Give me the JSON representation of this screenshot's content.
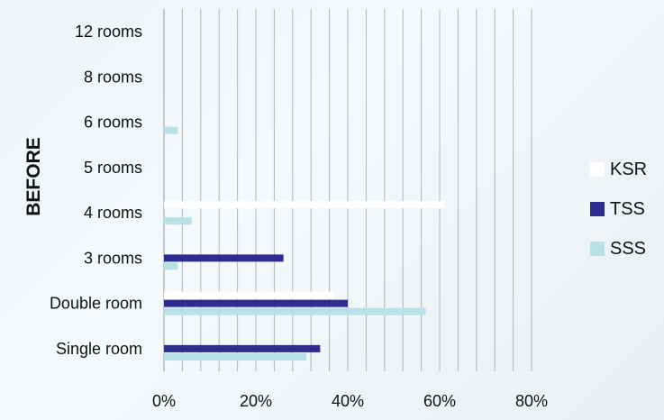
{
  "chart_data": {
    "type": "bar",
    "orientation": "horizontal",
    "ylabel": "BEFORE",
    "categories": [
      "12 rooms",
      "8 rooms",
      "6 rooms",
      "5 rooms",
      "4 rooms",
      "3 rooms",
      "Double room",
      "Single room"
    ],
    "xticks": [
      "0%",
      "20%",
      "40%",
      "60%",
      "80%"
    ],
    "xlim": [
      0,
      80
    ],
    "grid": true,
    "legend_position": "right",
    "series": [
      {
        "name": "KSR",
        "color": "#ffffff",
        "values": [
          0,
          0,
          0,
          0,
          61,
          0,
          37,
          0
        ]
      },
      {
        "name": "TSS",
        "color": "#2e2d8f",
        "values": [
          0,
          0,
          0,
          0,
          0,
          26,
          40,
          34
        ]
      },
      {
        "name": "SSS",
        "color": "#b7e1e6",
        "values": [
          0,
          0,
          3,
          0,
          6,
          3,
          57,
          31
        ]
      }
    ]
  }
}
